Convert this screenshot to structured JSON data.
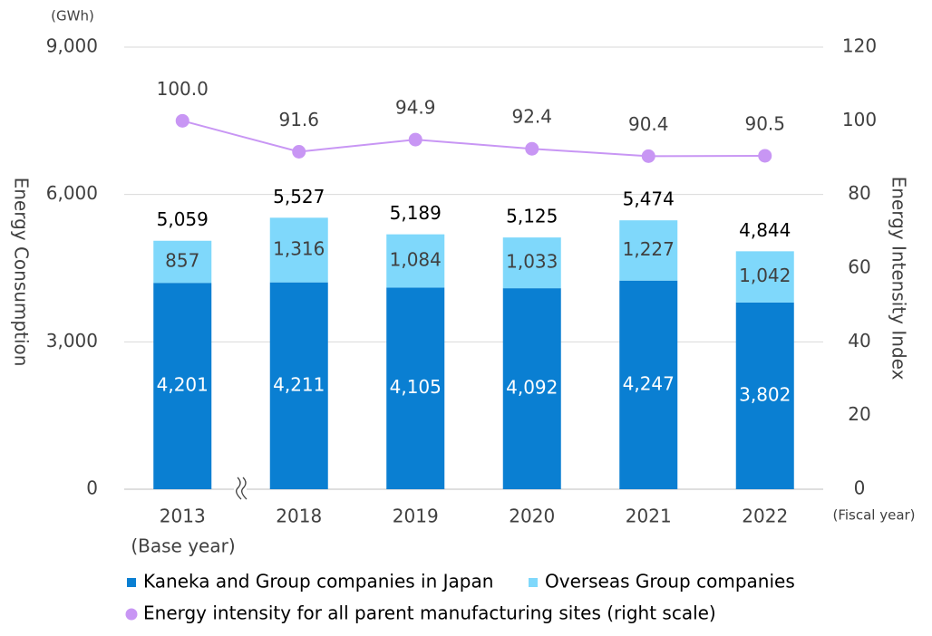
{
  "chart_data": {
    "type": "bar",
    "stacked": true,
    "y_unit": "(GWh)",
    "x_unit": "(Fiscal year)",
    "ylabel": "Energy Consumption",
    "y2label": "Energy Intensity Index",
    "base_year_note": "(Base year)",
    "categories": [
      "2013",
      "2018",
      "2019",
      "2020",
      "2021",
      "2022"
    ],
    "series": [
      {
        "name": "Kaneka and Group companies in Japan",
        "color": "#0a7fd2",
        "values": [
          4201,
          4211,
          4105,
          4092,
          4247,
          3802
        ],
        "value_labels": [
          "4,201",
          "4,211",
          "4,105",
          "4,092",
          "4,247",
          "3,802"
        ]
      },
      {
        "name": "Overseas Group companies",
        "color": "#7fd8fb",
        "values": [
          857,
          1316,
          1084,
          1033,
          1227,
          1042
        ],
        "value_labels": [
          "857",
          "1,316",
          "1,084",
          "1,033",
          "1,227",
          "1,042"
        ]
      },
      {
        "name": "Energy intensity for all parent manufacturing sites (right scale)",
        "type": "line",
        "axis": "y2",
        "color": "#c896f4",
        "values": [
          100.0,
          91.6,
          94.9,
          92.4,
          90.4,
          90.5
        ],
        "value_labels": [
          "100.0",
          "91.6",
          "94.9",
          "92.4",
          "90.4",
          "90.5"
        ]
      }
    ],
    "totals": [
      5059,
      5527,
      5189,
      5125,
      5474,
      4844
    ],
    "total_labels": [
      "5,059",
      "5,527",
      "5,189",
      "5,125",
      "5,474",
      "4,844"
    ],
    "ylim": [
      0,
      9000
    ],
    "yticks": [
      0,
      {
        "value": 3000,
        "label": "3,000"
      },
      {
        "value": 6000,
        "label": "6,000"
      },
      {
        "value": 9000,
        "label": "9,000"
      }
    ],
    "y2lim": [
      0,
      120
    ],
    "y2ticks": [
      0,
      20,
      40,
      60,
      80,
      100,
      120
    ],
    "grid": true,
    "legend": "bottom"
  }
}
